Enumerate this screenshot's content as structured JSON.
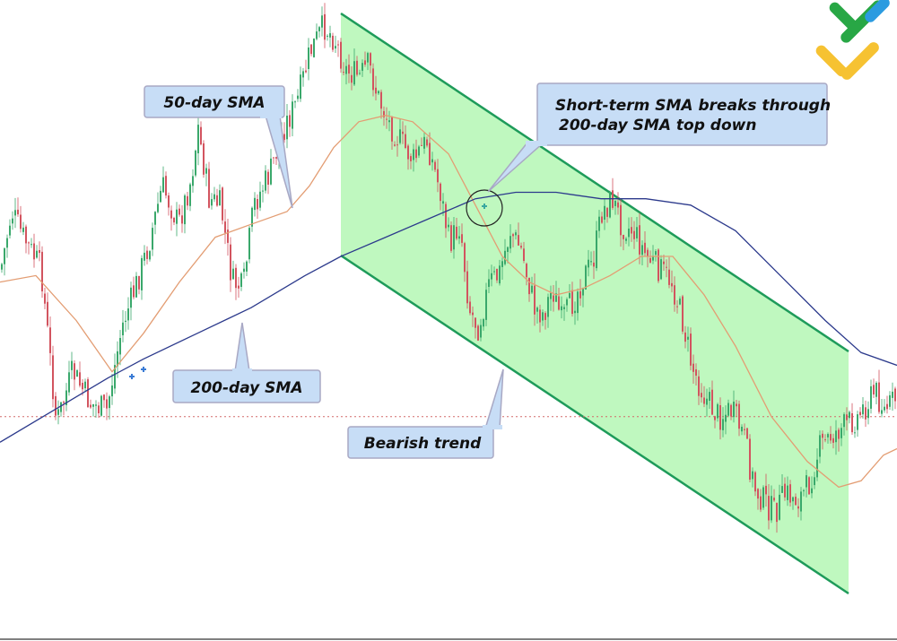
{
  "chart_data": {
    "type": "candlestick",
    "title": "",
    "xlabel": "",
    "ylabel": "",
    "grid": false,
    "legend": "none",
    "series": [
      {
        "name": "50-day SMA",
        "color": "#e8a07a"
      },
      {
        "name": "200-day SMA",
        "color": "#2c3a8c"
      }
    ],
    "price_path": [
      [
        0,
        0.42
      ],
      [
        12,
        0.33
      ],
      [
        25,
        0.37
      ],
      [
        45,
        0.42
      ],
      [
        62,
        0.66
      ],
      [
        80,
        0.58
      ],
      [
        100,
        0.63
      ],
      [
        118,
        0.64
      ],
      [
        135,
        0.51
      ],
      [
        152,
        0.44
      ],
      [
        165,
        0.38
      ],
      [
        180,
        0.29
      ],
      [
        198,
        0.35
      ],
      [
        212,
        0.28
      ],
      [
        220,
        0.2
      ],
      [
        232,
        0.31
      ],
      [
        245,
        0.32
      ],
      [
        258,
        0.44
      ],
      [
        270,
        0.45
      ],
      [
        282,
        0.32
      ],
      [
        300,
        0.27
      ],
      [
        315,
        0.2
      ],
      [
        330,
        0.16
      ],
      [
        345,
        0.08
      ],
      [
        360,
        0.04
      ],
      [
        372,
        0.06
      ],
      [
        385,
        0.11
      ],
      [
        400,
        0.12
      ],
      [
        410,
        0.1
      ],
      [
        420,
        0.15
      ],
      [
        432,
        0.19
      ],
      [
        445,
        0.22
      ],
      [
        460,
        0.25
      ],
      [
        475,
        0.22
      ],
      [
        490,
        0.3
      ],
      [
        500,
        0.38
      ],
      [
        512,
        0.35
      ],
      [
        522,
        0.48
      ],
      [
        532,
        0.51
      ],
      [
        545,
        0.44
      ],
      [
        555,
        0.43
      ],
      [
        568,
        0.36
      ],
      [
        580,
        0.39
      ],
      [
        595,
        0.48
      ],
      [
        605,
        0.49
      ],
      [
        615,
        0.45
      ],
      [
        625,
        0.5
      ],
      [
        638,
        0.47
      ],
      [
        650,
        0.43
      ],
      [
        660,
        0.41
      ],
      [
        670,
        0.33
      ],
      [
        682,
        0.31
      ],
      [
        692,
        0.35
      ],
      [
        705,
        0.36
      ],
      [
        720,
        0.4
      ],
      [
        735,
        0.42
      ],
      [
        748,
        0.44
      ],
      [
        760,
        0.5
      ],
      [
        770,
        0.57
      ],
      [
        785,
        0.62
      ],
      [
        800,
        0.65
      ],
      [
        815,
        0.64
      ],
      [
        828,
        0.68
      ],
      [
        840,
        0.76
      ],
      [
        850,
        0.78
      ],
      [
        862,
        0.8
      ],
      [
        875,
        0.77
      ],
      [
        888,
        0.78
      ],
      [
        900,
        0.76
      ],
      [
        912,
        0.7
      ],
      [
        925,
        0.68
      ],
      [
        935,
        0.67
      ],
      [
        945,
        0.66
      ],
      [
        955,
        0.65
      ],
      [
        965,
        0.63
      ],
      [
        975,
        0.61
      ],
      [
        985,
        0.64
      ],
      [
        1000,
        0.62
      ]
    ],
    "sma50_path": [
      [
        0,
        0.44
      ],
      [
        40,
        0.43
      ],
      [
        85,
        0.5
      ],
      [
        125,
        0.58
      ],
      [
        160,
        0.52
      ],
      [
        200,
        0.44
      ],
      [
        240,
        0.37
      ],
      [
        280,
        0.35
      ],
      [
        320,
        0.33
      ],
      [
        345,
        0.29
      ],
      [
        372,
        0.23
      ],
      [
        400,
        0.19
      ],
      [
        430,
        0.18
      ],
      [
        460,
        0.19
      ],
      [
        500,
        0.24
      ],
      [
        530,
        0.32
      ],
      [
        560,
        0.4
      ],
      [
        590,
        0.44
      ],
      [
        620,
        0.46
      ],
      [
        650,
        0.45
      ],
      [
        680,
        0.43
      ],
      [
        715,
        0.4
      ],
      [
        750,
        0.4
      ],
      [
        785,
        0.46
      ],
      [
        820,
        0.54
      ],
      [
        860,
        0.65
      ],
      [
        900,
        0.72
      ],
      [
        935,
        0.76
      ],
      [
        960,
        0.75
      ],
      [
        985,
        0.71
      ],
      [
        1000,
        0.7
      ]
    ],
    "sma200_path": [
      [
        0,
        0.69
      ],
      [
        60,
        0.64
      ],
      [
        120,
        0.59
      ],
      [
        160,
        0.56
      ],
      [
        220,
        0.52
      ],
      [
        280,
        0.48
      ],
      [
        340,
        0.43
      ],
      [
        380,
        0.4
      ],
      [
        430,
        0.37
      ],
      [
        480,
        0.34
      ],
      [
        530,
        0.31
      ],
      [
        575,
        0.3
      ],
      [
        620,
        0.3
      ],
      [
        670,
        0.31
      ],
      [
        720,
        0.31
      ],
      [
        770,
        0.32
      ],
      [
        820,
        0.36
      ],
      [
        870,
        0.43
      ],
      [
        920,
        0.5
      ],
      [
        960,
        0.55
      ],
      [
        1000,
        0.57
      ]
    ],
    "reference_level": 0.65,
    "annotations": {
      "sma50": "50-day SMA",
      "sma200": "200-day SMA",
      "trend": "Bearish trend",
      "cross_line1": "Short-term SMA breaks through",
      "cross_line2": "200-day SMA top down"
    }
  }
}
